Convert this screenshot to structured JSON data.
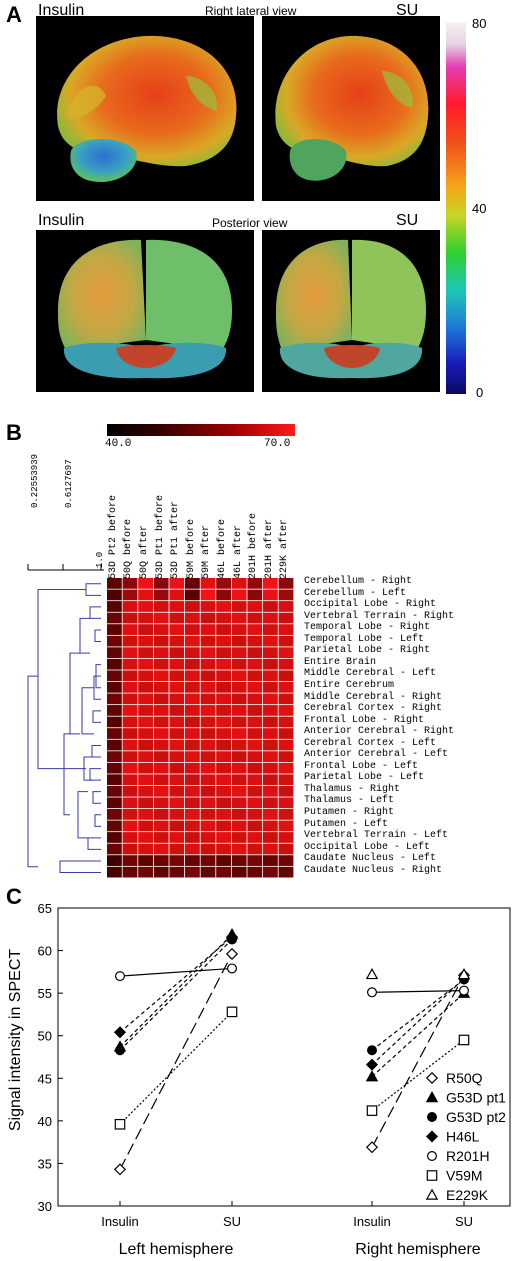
{
  "panelA": {
    "letter": "A",
    "top_left_label": "Insulin",
    "top_view": "Right lateral view",
    "top_right_label": "SU",
    "bottom_left_label": "Insulin",
    "bottom_view": "Posterior view",
    "bottom_right_label": "SU",
    "colorbar_ticks": [
      "80",
      "40",
      "0"
    ]
  },
  "panelB": {
    "letter": "B",
    "scale_min": "40.0",
    "scale_max": "70.0",
    "dendro_ticks": [
      "0.22553939",
      "0.6127697",
      "1.0"
    ],
    "columns": [
      "G53D Pt2 before",
      "R50Q before",
      "R50Q after",
      "G53D Pt1 before",
      "G53D Pt1 after",
      "V59M before",
      "V59M after",
      "H46L before",
      "H46L after",
      "R201H before",
      "R201H after",
      "E229K after"
    ],
    "rows": [
      "Cerebellum - Right",
      "Cerebellum - Left",
      "Occipital Lobe - Right",
      "Vertebral Terrain - Right",
      "Temporal Lobe - Right",
      "Temporal Lobe - Left",
      "Parietal Lobe - Right",
      "Entire Brain",
      "Middle Cerebral - Left",
      "Entire Cerebrum",
      "Middle Cerebral - Right",
      "Cerebral Cortex - Right",
      "Frontal Lobe - Right",
      "Anterior Cerebral - Right",
      "Cerebral Cortex - Left",
      "Anterior Cerebral - Left",
      "Frontal Lobe - Left",
      "Parietal Lobe - Left",
      "Thalamus - Right",
      "Thalamus - Left",
      "Putamen - Right",
      "Putamen - Left",
      "Vertebral Terrain - Left",
      "Occipital Lobe - Left",
      "Caudate Nucleus - Left",
      "Caudate Nucleus - Right"
    ]
  },
  "panelC": {
    "letter": "C",
    "chart_data": {
      "type": "line",
      "ylabel": "Signal intensity in SPECT",
      "ylim": [
        30,
        65
      ],
      "yticks": [
        30,
        35,
        40,
        45,
        50,
        55,
        60,
        65
      ],
      "groups": [
        "Left hemisphere",
        "Right hemisphere"
      ],
      "x_tick_labels": [
        "Insulin",
        "SU",
        "Insulin",
        "SU"
      ],
      "legend_position": "bottom-right",
      "series": [
        {
          "name": "R50Q",
          "marker": "diamond-open",
          "line": "long-dash",
          "left": [
            34.3,
            59.6
          ],
          "right": [
            36.9,
            57.1
          ]
        },
        {
          "name": "G53D pt1",
          "marker": "triangle-filled",
          "line": "short-dash",
          "left": [
            48.7,
            61.9
          ],
          "right": [
            45.2,
            55.0
          ]
        },
        {
          "name": "G53D pt2",
          "marker": "circle-filled",
          "line": "short-dash",
          "left": [
            48.3,
            61.3
          ],
          "right": [
            48.3,
            56.6
          ]
        },
        {
          "name": "H46L",
          "marker": "diamond-filled",
          "line": "short-dash",
          "left": [
            50.4,
            61.6
          ],
          "right": [
            46.6,
            56.7
          ]
        },
        {
          "name": "R201H",
          "marker": "circle-open",
          "line": "solid",
          "left": [
            57.0,
            57.9
          ],
          "right": [
            55.1,
            55.3
          ]
        },
        {
          "name": "V59M",
          "marker": "square-open",
          "line": "dotted",
          "left": [
            39.6,
            52.8
          ],
          "right": [
            41.2,
            49.5
          ]
        },
        {
          "name": "E229K",
          "marker": "triangle-open",
          "line": "none",
          "left": [],
          "right": [
            57.2,
            57.2
          ]
        }
      ]
    }
  }
}
